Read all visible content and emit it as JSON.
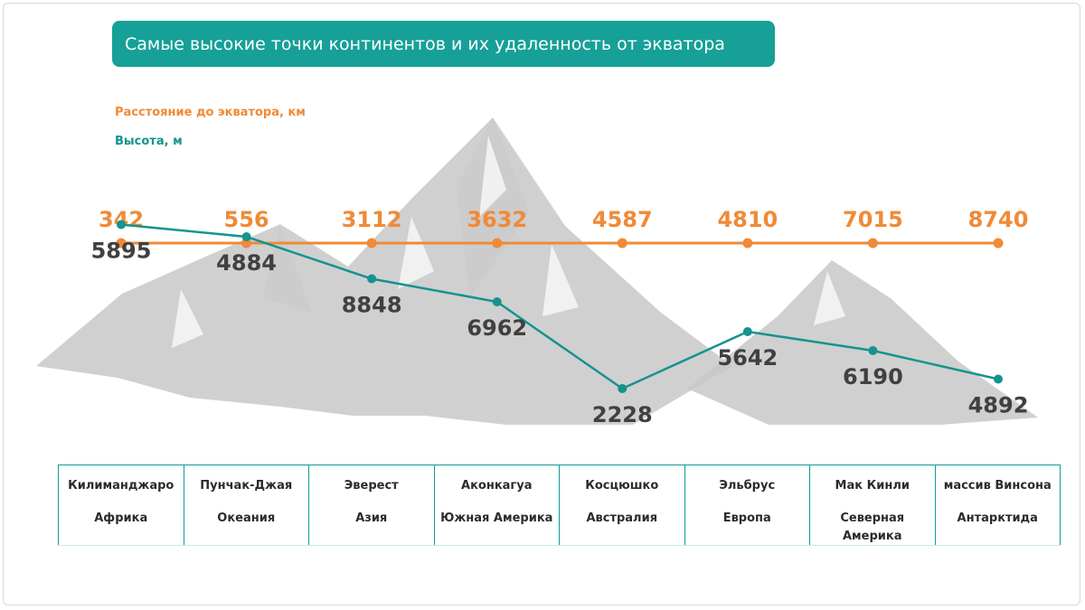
{
  "title": "Самые высокие точки континентов и их удаленность от экватора",
  "colors": {
    "title_bg": "#16a097",
    "distance": "#f08a36",
    "height": "#14938f",
    "height_label": "#404040",
    "mountain": "#c8c8c8",
    "table_border": "#0e9c96"
  },
  "legend": {
    "distance_label": "Расстояние до экватора,  км",
    "height_label": "Высота, м"
  },
  "chart_data": {
    "type": "line",
    "title": "Самые высокие точки континентов и их удаленность от экватора",
    "categories": [
      "Килиманджаро",
      "Пунчак-Джая",
      "Эверест",
      "Аконкагуа",
      "Косцюшко",
      "Эльбрус",
      "Мак Кинли",
      "массив Винсона"
    ],
    "series": [
      {
        "name": "Расстояние до экватора,  км",
        "values": [
          342,
          556,
          3112,
          3632,
          4587,
          4810,
          7015,
          8740
        ]
      },
      {
        "name": "Высота, м",
        "values": [
          5895,
          4884,
          8848,
          6962,
          2228,
          5642,
          6190,
          4892
        ]
      }
    ],
    "height_line_level": [
      0.85,
      0.76,
      0.45,
      0.28,
      -0.36,
      0.06,
      -0.08,
      -0.29
    ],
    "legend_position": "top-left",
    "grid": false
  },
  "table": [
    {
      "peak": "Килиманджаро",
      "continent": "Африка"
    },
    {
      "peak": "Пунчак-Джая",
      "continent": "Океания"
    },
    {
      "peak": "Эверест",
      "continent": "Азия"
    },
    {
      "peak": "Аконкагуа",
      "continent": "Южная Америка"
    },
    {
      "peak": "Косцюшко",
      "continent": "Австралия"
    },
    {
      "peak": "Эльбрус",
      "continent": "Европа"
    },
    {
      "peak": "Мак Кинли",
      "continent": "Северная Америка"
    },
    {
      "peak": "массив Винсона",
      "continent": "Антарктида"
    }
  ]
}
